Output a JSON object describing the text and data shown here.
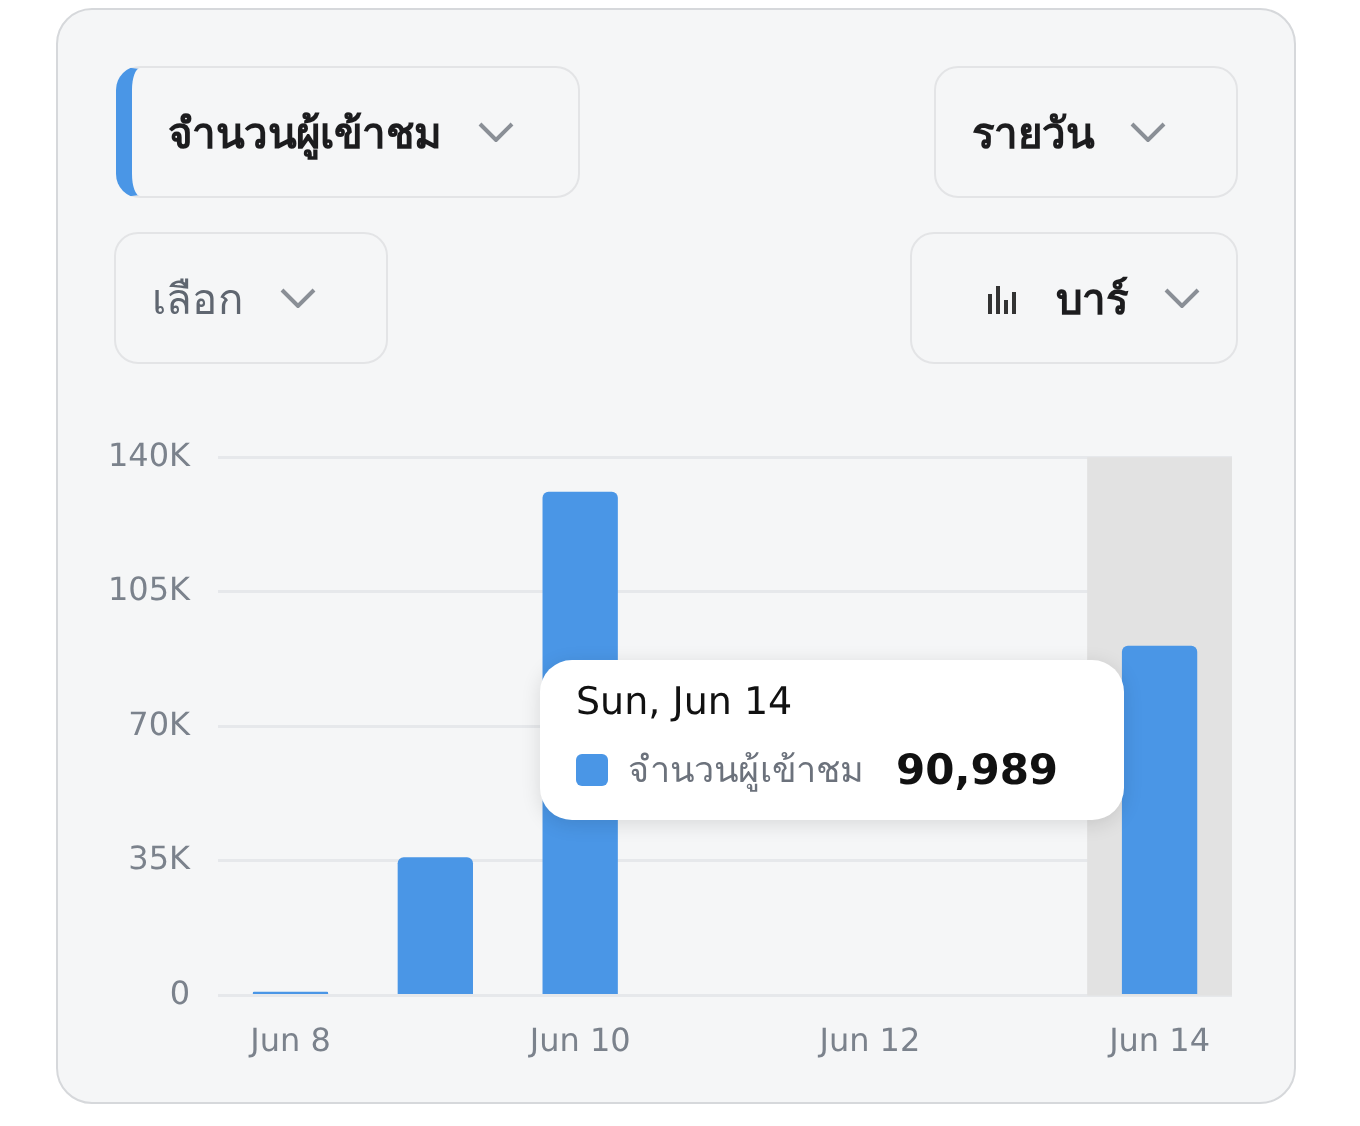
{
  "chart_data": {
    "type": "bar",
    "categories": [
      "Jun 8",
      null,
      "Jun 10",
      null,
      "Jun 12",
      null,
      "Jun 14"
    ],
    "series": [
      {
        "name": "จำนวนผู้เข้าชม",
        "color": "#4a96e6",
        "values": [
          1000,
          36000,
          131000,
          null,
          null,
          null,
          90989
        ]
      }
    ],
    "ylim": [
      0,
      140000
    ],
    "yticks": [
      0,
      {
        "value": 35000,
        "label": "35K"
      },
      {
        "value": 70000,
        "label": "70K"
      },
      {
        "value": 105000,
        "label": "105K"
      },
      {
        "value": 140000,
        "label": "140K"
      }
    ],
    "grid": "y",
    "bands": [
      {
        "axis": "x",
        "from": "Jun 14",
        "to": "Jun 14",
        "color": "#e2e2e2"
      }
    ],
    "annotations": [
      "จำนวนผู้เข้าชม",
      "รายวัน",
      "เลือก",
      "บาร์",
      "Sun, Jun 14",
      "90,989"
    ]
  }
}
